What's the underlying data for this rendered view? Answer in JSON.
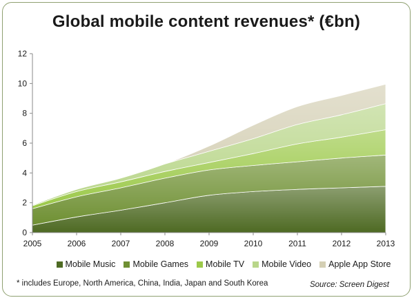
{
  "chart_data": {
    "type": "area",
    "stacked": true,
    "title": "Global mobile content revenues* (€bn)",
    "x": [
      "2005",
      "2006",
      "2007",
      "2008",
      "2009",
      "2010",
      "2011",
      "2012",
      "2013"
    ],
    "ylim": [
      0,
      12
    ],
    "yticks": [
      "0",
      "2",
      "4",
      "6",
      "8",
      "10",
      "12"
    ],
    "grid": false,
    "legend_position": "bottom",
    "series": [
      {
        "name": "Mobile Music",
        "color": "#4e6a23",
        "values": [
          0.5,
          1.05,
          1.5,
          2.0,
          2.5,
          2.75,
          2.9,
          3.0,
          3.1
        ]
      },
      {
        "name": "Mobile Games",
        "color": "#6f9033",
        "values": [
          1.1,
          1.35,
          1.5,
          1.65,
          1.7,
          1.75,
          1.85,
          2.0,
          2.1
        ]
      },
      {
        "name": "Mobile TV",
        "color": "#9cc94a",
        "values": [
          0.2,
          0.35,
          0.4,
          0.45,
          0.5,
          0.8,
          1.2,
          1.4,
          1.7
        ]
      },
      {
        "name": "Mobile Video",
        "color": "#b9d68a",
        "values": [
          0.05,
          0.15,
          0.25,
          0.5,
          0.75,
          1.0,
          1.3,
          1.5,
          1.75
        ]
      },
      {
        "name": "Apple App Store",
        "color": "#d4cfb4",
        "values": [
          0.0,
          0.0,
          0.0,
          0.0,
          0.35,
          0.9,
          1.2,
          1.3,
          1.3
        ]
      }
    ]
  },
  "footnote": "* includes Europe, North America, China, India, Japan and South Korea",
  "source": "Source: Screen Digest"
}
